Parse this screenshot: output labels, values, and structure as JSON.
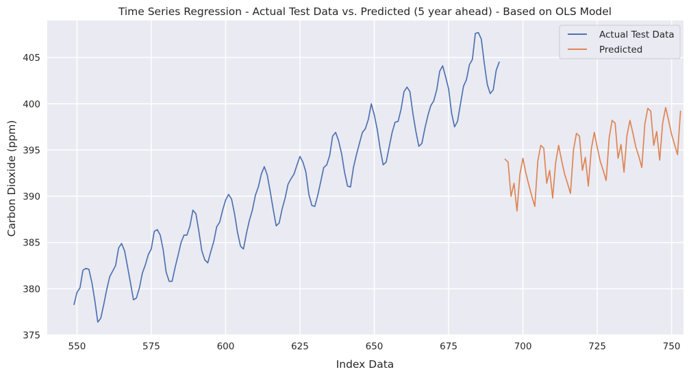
{
  "chart_data": {
    "type": "line",
    "title": "Time Series Regression - Actual Test Data vs. Predicted (5 year ahead) - Based on OLS Model",
    "xlabel": "Index Data",
    "ylabel": "Carbon Dioxide (ppm)",
    "xlim": [
      540,
      754
    ],
    "ylim": [
      375,
      409
    ],
    "xticks": [
      550,
      575,
      600,
      625,
      650,
      675,
      700,
      725,
      750
    ],
    "yticks": [
      375,
      380,
      385,
      390,
      395,
      400,
      405
    ],
    "grid": true,
    "legend_position": "top-right",
    "series": [
      {
        "name": "Actual Test Data",
        "color": "#4c72b0",
        "x": [
          549,
          550,
          551,
          552,
          553,
          554,
          555,
          556,
          557,
          558,
          559,
          560,
          561,
          562,
          563,
          564,
          565,
          566,
          567,
          568,
          569,
          570,
          571,
          572,
          573,
          574,
          575,
          576,
          577,
          578,
          579,
          580,
          581,
          582,
          583,
          584,
          585,
          586,
          587,
          588,
          589,
          590,
          591,
          592,
          593,
          594,
          595,
          596,
          597,
          598,
          599,
          600,
          601,
          602,
          603,
          604,
          605,
          606,
          607,
          608,
          609,
          610,
          611,
          612,
          613,
          614,
          615,
          616,
          617,
          618,
          619,
          620,
          621,
          622,
          623,
          624,
          625,
          626,
          627,
          628,
          629,
          630,
          631,
          632,
          633,
          634,
          635,
          636,
          637,
          638,
          639,
          640,
          641,
          642,
          643,
          644,
          645,
          646,
          647,
          648,
          649,
          650,
          651,
          652,
          653,
          654,
          655,
          656,
          657,
          658,
          659,
          660,
          661,
          662,
          663,
          664,
          665,
          666,
          667,
          668,
          669,
          670,
          671,
          672,
          673,
          674,
          675,
          676,
          677,
          678,
          679,
          680,
          681,
          682,
          683,
          684,
          685,
          686,
          687,
          688,
          689,
          690,
          691,
          692
        ],
        "values": [
          378.3,
          379.6,
          380.1,
          382.0,
          382.2,
          382.1,
          380.7,
          378.7,
          376.4,
          376.8,
          378.3,
          379.9,
          381.3,
          381.9,
          382.5,
          384.4,
          384.9,
          384.1,
          382.4,
          380.6,
          378.8,
          379.0,
          380.1,
          381.7,
          382.6,
          383.7,
          384.3,
          386.2,
          386.4,
          385.8,
          384.2,
          381.8,
          380.8,
          380.8,
          382.3,
          383.6,
          385.0,
          385.8,
          385.8,
          386.8,
          388.5,
          388.1,
          386.2,
          384.1,
          383.1,
          382.8,
          384.0,
          385.1,
          386.7,
          387.2,
          388.5,
          389.6,
          390.2,
          389.7,
          388.1,
          386.1,
          384.6,
          384.3,
          386.0,
          387.4,
          388.5,
          390.1,
          391.0,
          392.4,
          393.2,
          392.3,
          390.5,
          388.6,
          386.8,
          387.1,
          388.6,
          389.8,
          391.3,
          391.9,
          392.4,
          393.4,
          394.3,
          393.7,
          392.6,
          390.2,
          389.0,
          388.9,
          390.1,
          391.6,
          393.1,
          393.4,
          394.4,
          396.5,
          396.9,
          396.0,
          394.6,
          392.6,
          391.1,
          391.0,
          393.1,
          394.5,
          395.7,
          396.9,
          397.3,
          398.3,
          400.0,
          398.8,
          397.2,
          395.1,
          393.4,
          393.7,
          395.3,
          396.9,
          398.0,
          398.1,
          399.4,
          401.3,
          401.8,
          401.3,
          398.9,
          397.0,
          395.4,
          395.7,
          397.3,
          398.7,
          399.8,
          400.3,
          401.5,
          403.5,
          404.1,
          402.9,
          401.6,
          399.0,
          397.5,
          398.1,
          400.0,
          401.9,
          402.6,
          404.2,
          404.8,
          407.6,
          407.7,
          407.0,
          404.4,
          402.1,
          401.1,
          401.5,
          403.6,
          404.5
        ]
      },
      {
        "name": "Predicted",
        "color": "#dd8452",
        "x": [
          694,
          695,
          696,
          697,
          698,
          699,
          700,
          701,
          702,
          703,
          704,
          705,
          706,
          707,
          708,
          709,
          710,
          711,
          712,
          713,
          714,
          715,
          716,
          717,
          718,
          719,
          720,
          721,
          722,
          723,
          724,
          725,
          726,
          727,
          728,
          729,
          730,
          731,
          732,
          733,
          734,
          735,
          736,
          737,
          738,
          739,
          740,
          741,
          742,
          743,
          744,
          745,
          746,
          747,
          748,
          749,
          750,
          751,
          752,
          753
        ],
        "values": [
          394.0,
          393.7,
          390.0,
          391.4,
          388.4,
          392.4,
          394.1,
          392.5,
          391.2,
          390.0,
          388.9,
          393.8,
          395.5,
          395.2,
          391.4,
          392.8,
          389.8,
          393.6,
          395.5,
          393.9,
          392.4,
          391.4,
          390.3,
          395.0,
          396.8,
          396.5,
          392.8,
          394.2,
          391.1,
          395.1,
          396.9,
          395.3,
          393.8,
          392.8,
          391.7,
          396.3,
          398.2,
          397.9,
          394.1,
          395.6,
          392.6,
          396.6,
          398.2,
          396.8,
          395.3,
          394.3,
          393.1,
          397.8,
          399.5,
          399.2,
          395.5,
          397.0,
          393.9,
          397.9,
          399.6,
          398.2,
          396.7,
          395.6,
          394.5,
          399.2
        ]
      }
    ]
  }
}
